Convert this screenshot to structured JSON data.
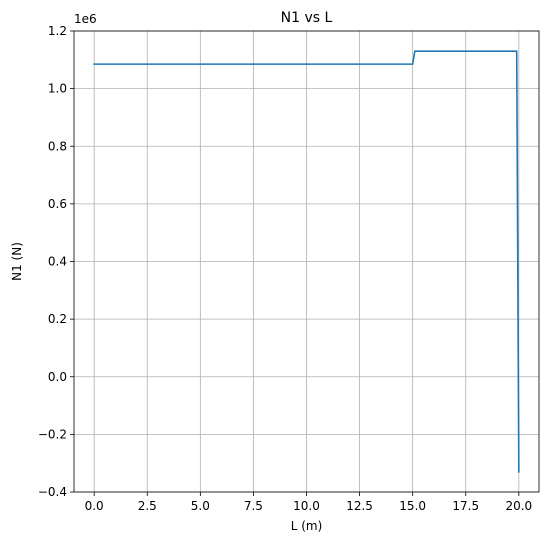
{
  "chart_data": {
    "type": "line",
    "title": "N1 vs L",
    "xlabel": "L (m)",
    "ylabel": "N1 (N)",
    "y_offset_label": "1e6",
    "xlim": [
      -0.95,
      20.95
    ],
    "ylim": [
      -0.4,
      1.2
    ],
    "x_ticks": [
      0.0,
      2.5,
      5.0,
      7.5,
      10.0,
      12.5,
      15.0,
      17.5,
      20.0
    ],
    "x_tick_labels": [
      "0.0",
      "2.5",
      "5.0",
      "7.5",
      "10.0",
      "12.5",
      "15.0",
      "17.5",
      "20.0"
    ],
    "y_ticks": [
      -0.4,
      -0.2,
      0.0,
      0.2,
      0.4,
      0.6,
      0.8,
      1.0,
      1.2
    ],
    "y_tick_labels": [
      "−0.4",
      "−0.2",
      "0.0",
      "0.2",
      "0.4",
      "0.6",
      "0.8",
      "1.0",
      "1.2"
    ],
    "grid": true,
    "series": [
      {
        "color": "#1f77b4",
        "x": [
          0.0,
          15.0,
          15.1,
          19.9,
          20.0
        ],
        "y": [
          1.085,
          1.085,
          1.13,
          1.13,
          -0.33
        ]
      }
    ]
  }
}
